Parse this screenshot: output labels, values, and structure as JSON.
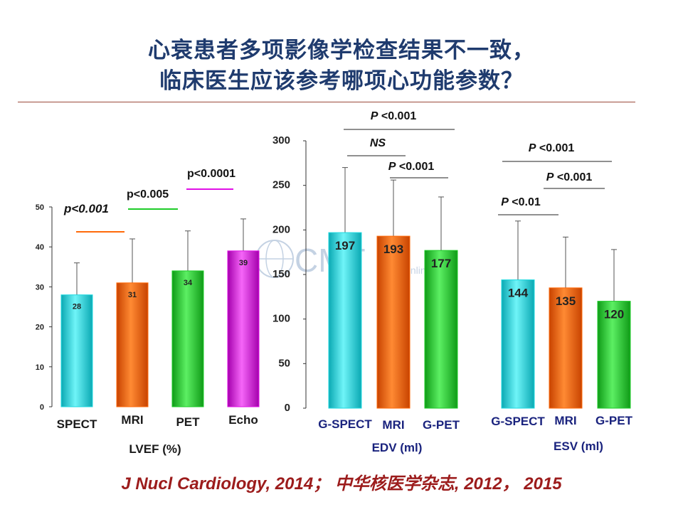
{
  "title": {
    "line1": "心衰患者多项影像学检查结果不一致，",
    "line2": "临床医生应该参考哪项心功能参数？"
  },
  "watermark": {
    "logo_text": "CMT",
    "sub_text": "Online"
  },
  "citation": "J Nucl Cardiology, 2014； 中华核医学杂志, 2012， 2015",
  "colors": {
    "cyan": "#1fd9e0",
    "orange": "#ff6a0a",
    "green": "#1ecc28",
    "magenta": "#e010e6"
  },
  "chart_data": [
    {
      "type": "bar",
      "xlabel": "LVEF (%)",
      "categories": [
        "SPECT",
        "MRI",
        "PET",
        "Echo"
      ],
      "values": [
        28,
        31,
        34,
        39
      ],
      "error_upper": [
        36,
        42,
        44,
        47
      ],
      "ylim": [
        0,
        50
      ],
      "yticks": [
        "0",
        "10",
        "20",
        "30",
        "40",
        "50"
      ],
      "annotations": [
        {
          "text": "p<0.001",
          "from": 0,
          "to": 1,
          "color": "orange"
        },
        {
          "text": "p<0.005",
          "from": 1,
          "to": 2,
          "color": "green"
        },
        {
          "text": "p<0.0001",
          "from": 2,
          "to": 3,
          "color": "magenta"
        }
      ]
    },
    {
      "type": "bar",
      "xlabel": "EDV (ml)",
      "categories": [
        "G-SPECT",
        "MRI",
        "G-PET"
      ],
      "values": [
        197,
        193,
        177
      ],
      "error_upper": [
        270,
        256,
        237
      ],
      "ylim": [
        0,
        300
      ],
      "yticks": [
        "0",
        "50",
        "100",
        "150",
        "200",
        "250",
        "300"
      ],
      "annotations": [
        {
          "text": "P <0.001",
          "from": 0,
          "to": 2
        },
        {
          "text": "NS",
          "from": 0,
          "to": 1
        },
        {
          "text": "P <0.001",
          "from": 1,
          "to": 2
        }
      ]
    },
    {
      "type": "bar",
      "xlabel": "ESV (ml)",
      "categories": [
        "G-SPECT",
        "MRI",
        "G-PET"
      ],
      "values": [
        144,
        135,
        120
      ],
      "error_upper": [
        210,
        192,
        178
      ],
      "ylim": [
        0,
        300
      ],
      "annotations": [
        {
          "text": "P <0.001",
          "from": 0,
          "to": 2
        },
        {
          "text": "P <0.001",
          "from": 1,
          "to": 2
        },
        {
          "text": "P <0.01",
          "from": 0,
          "to": 1
        }
      ]
    }
  ]
}
